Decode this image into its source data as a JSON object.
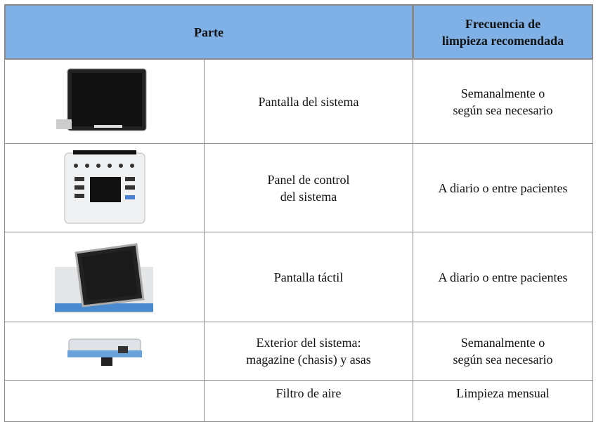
{
  "table": {
    "header": {
      "part": "Parte",
      "frequency": [
        "Frecuencia de",
        "limpieza recomendada"
      ]
    },
    "rows": [
      {
        "part": [
          "Pantalla del sistema"
        ],
        "frequency": [
          "Semanalmente o",
          "según sea necesario"
        ]
      },
      {
        "part": [
          "Panel de control",
          "del sistema"
        ],
        "frequency": [
          "A diario o entre pacientes"
        ]
      },
      {
        "part": [
          "Pantalla táctil"
        ],
        "frequency": [
          "A diario o entre pacientes"
        ]
      },
      {
        "part": [
          "Exterior del sistema:",
          "magazine (chasis) y asas"
        ],
        "frequency": [
          "Semanalmente o",
          "según sea necesario"
        ]
      },
      {
        "part": [
          "Filtro de aire"
        ],
        "frequency": [
          "Limpieza mensual"
        ]
      }
    ]
  }
}
